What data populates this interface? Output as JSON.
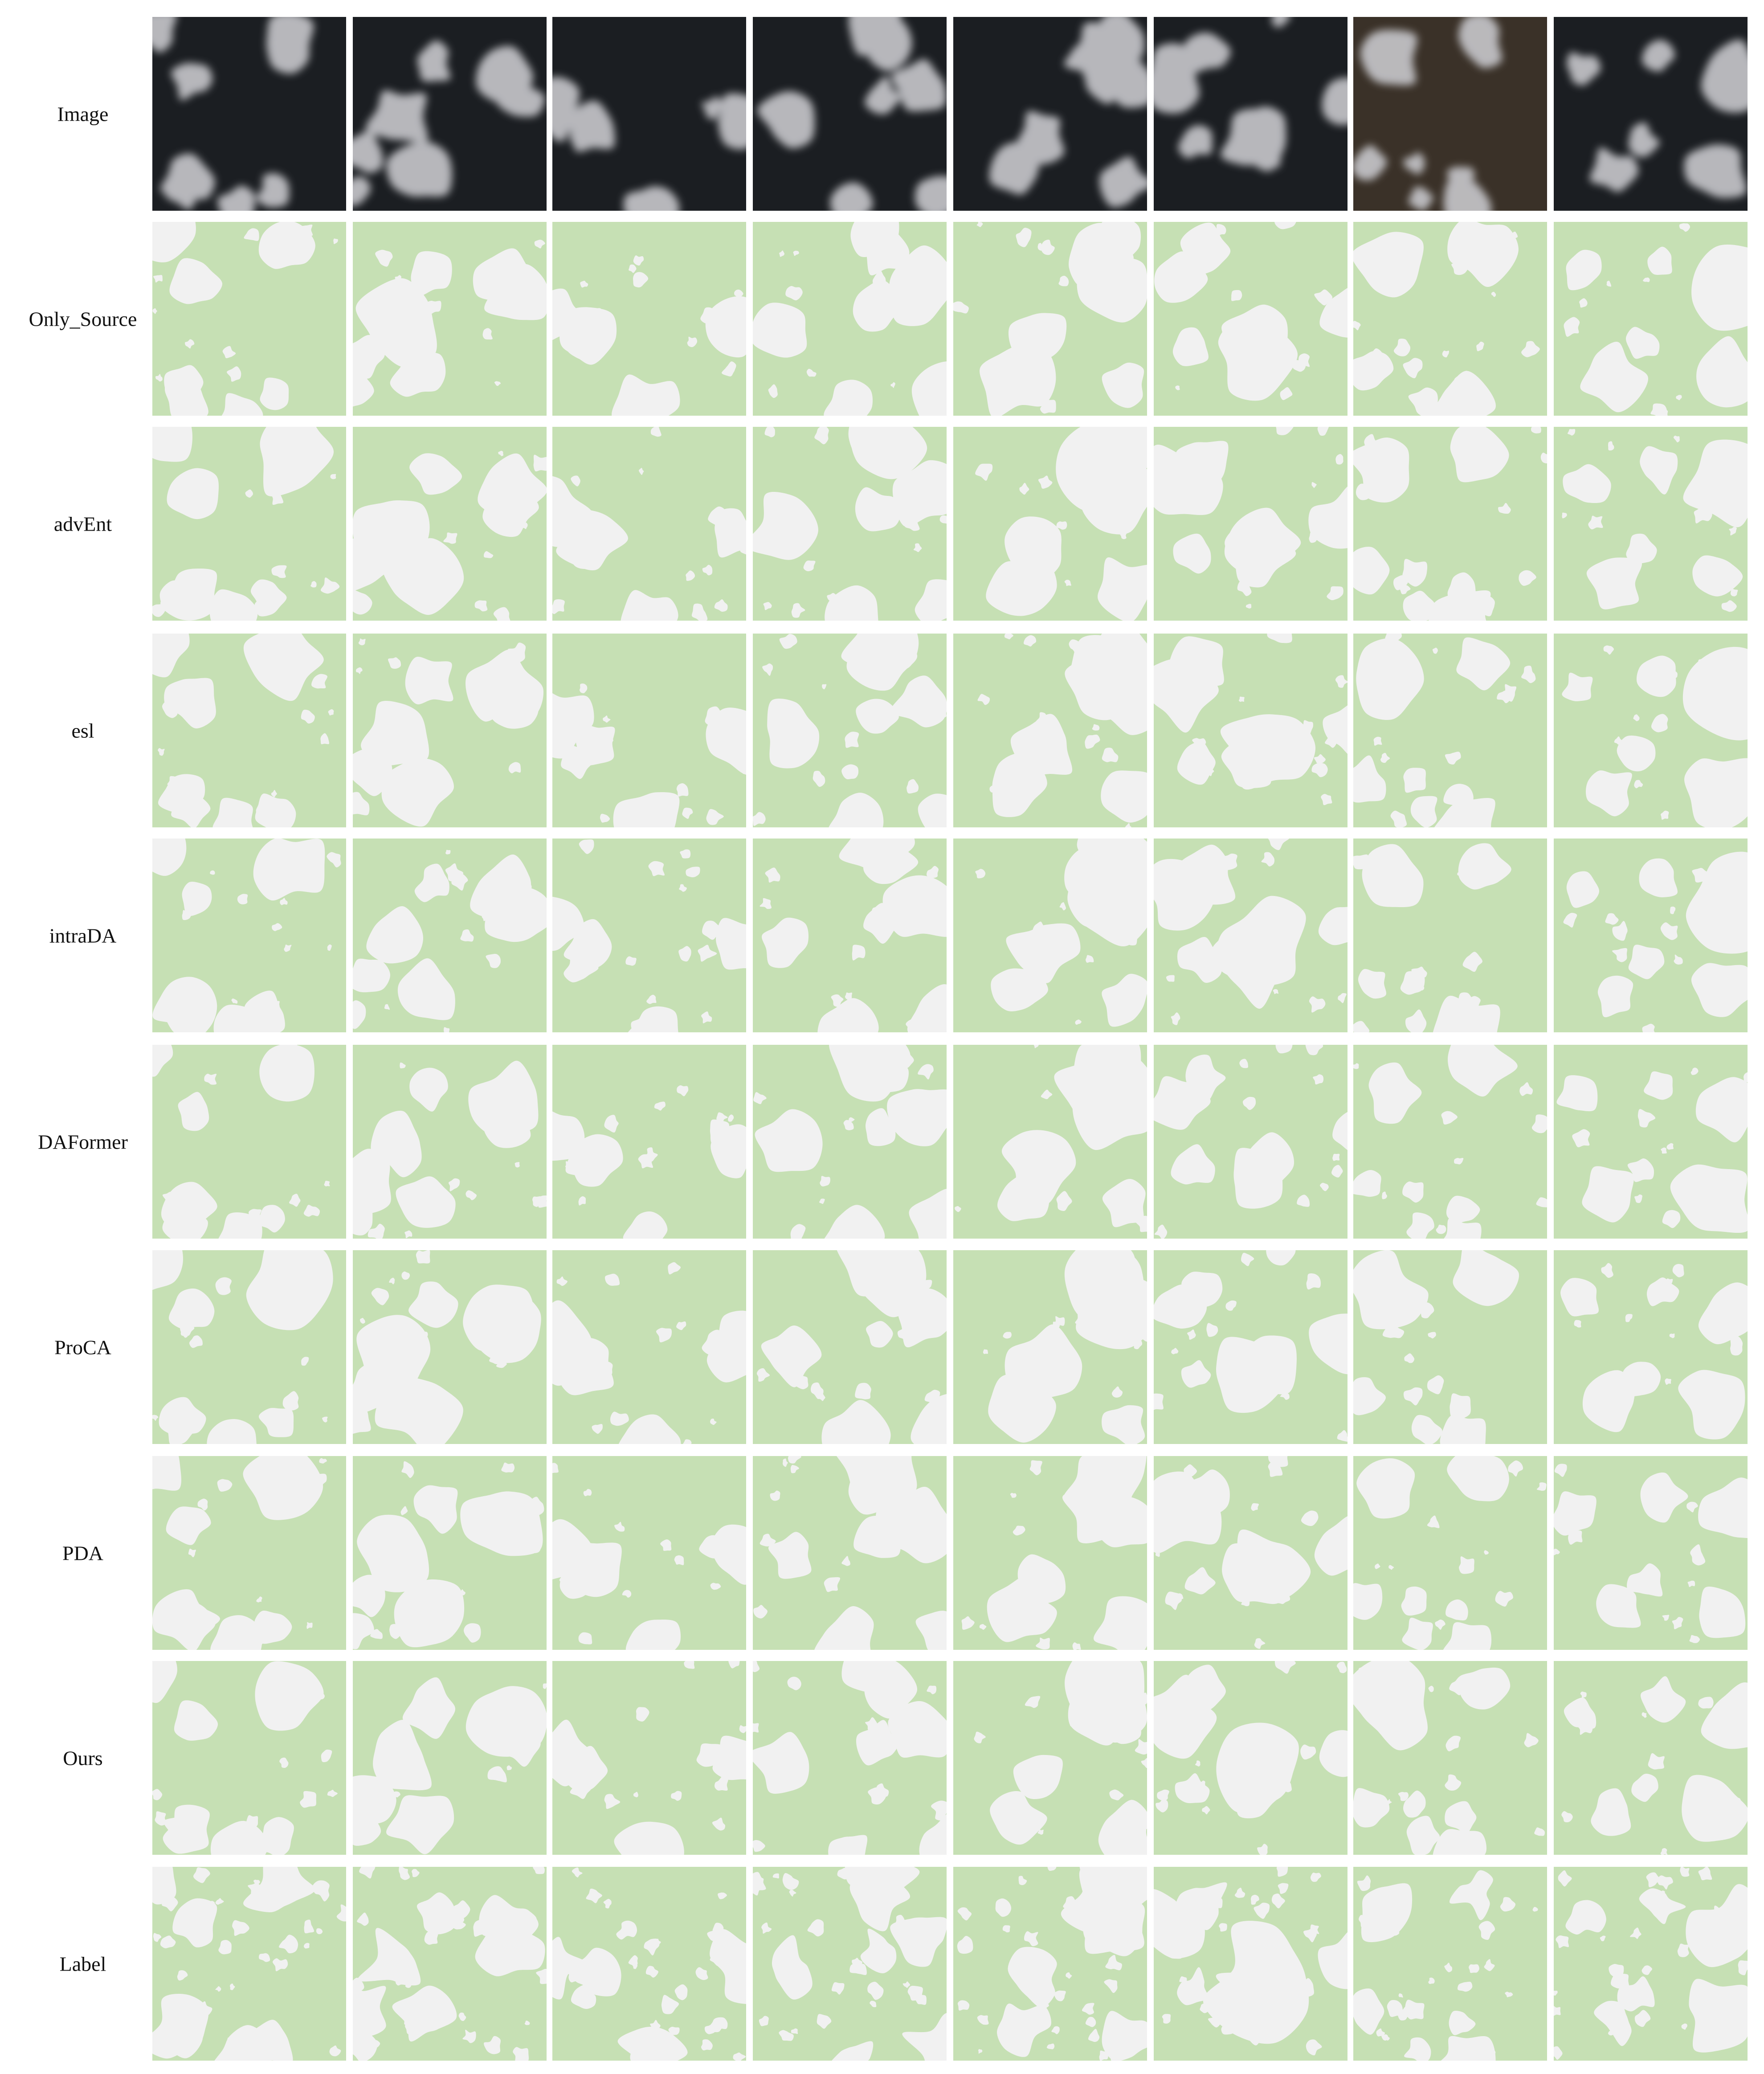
{
  "rows": [
    {
      "label": "Image",
      "kind": "image"
    },
    {
      "label": "Only_Source",
      "kind": "mask"
    },
    {
      "label": "advEnt",
      "kind": "mask"
    },
    {
      "label": "esl",
      "kind": "mask"
    },
    {
      "label": "intraDA",
      "kind": "mask"
    },
    {
      "label": "DAFormer",
      "kind": "mask"
    },
    {
      "label": "ProCA",
      "kind": "mask"
    },
    {
      "label": "PDA",
      "kind": "mask"
    },
    {
      "label": "Ours",
      "kind": "mask"
    },
    {
      "label": "Label",
      "kind": "mask"
    }
  ],
  "columns": 8,
  "colors": {
    "background_class": "#c6e0b4",
    "cloud_class": "#f1f1f1",
    "image_dark": "#1b1e22",
    "image_brown": "#3a3128",
    "cloud_image": "#c8c8cc"
  }
}
